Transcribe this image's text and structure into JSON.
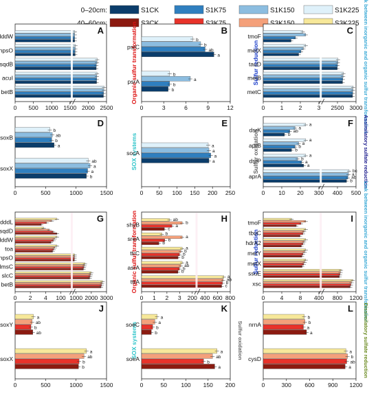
{
  "legend": {
    "rows": [
      {
        "label": "0–20cm:",
        "items": [
          {
            "name": "S1CK",
            "color": "#0b3d6b"
          },
          {
            "name": "S1K75",
            "color": "#2f7fbf"
          },
          {
            "name": "S1K150",
            "color": "#8cbde0"
          },
          {
            "name": "S1K225",
            "color": "#dff1fa"
          }
        ]
      },
      {
        "label": "40–60cm:",
        "items": [
          {
            "name": "S3CK",
            "color": "#8b1a10"
          },
          {
            "name": "S3K75",
            "color": "#e8322a"
          },
          {
            "name": "S3K150",
            "color": "#f4a07a"
          },
          {
            "name": "S3K225",
            "color": "#f7e89a"
          }
        ]
      }
    ]
  },
  "chart_data": [
    {
      "panel": "A",
      "type": "bar",
      "orientation": "horizontal",
      "group": "0–20cm",
      "categories": [
        "dddW",
        "hpsO",
        "sqdB",
        "acuI",
        "betB"
      ],
      "xlim": [
        0,
        2500
      ],
      "xticks": [
        "0",
        "500",
        "1000",
        "1500",
        "2000",
        "2500"
      ],
      "axis_break": true,
      "series": [
        {
          "name": "S1CK",
          "values": [
            90,
            130,
            1820,
            1850,
            2400
          ]
        },
        {
          "name": "S1K75",
          "values": [
            85,
            125,
            1830,
            1860,
            2410
          ]
        },
        {
          "name": "S1K150",
          "values": [
            95,
            135,
            1880,
            1870,
            2440
          ]
        },
        {
          "name": "S1K225",
          "values": [
            100,
            145,
            1900,
            1880,
            2450
          ]
        }
      ]
    },
    {
      "panel": "B",
      "type": "bar",
      "orientation": "horizontal",
      "group": "0–20cm",
      "side_title": "Organic sulfur transformation",
      "categories": [
        "psrC",
        "psrA"
      ],
      "xlim": [
        0,
        12
      ],
      "xticks": [
        "0",
        "3",
        "6",
        "9",
        "12"
      ],
      "series": [
        {
          "name": "S1CK",
          "values": [
            9.8,
            3.6
          ]
        },
        {
          "name": "S1K75",
          "values": [
            8.6,
            3.8
          ]
        },
        {
          "name": "S1K150",
          "values": [
            8.0,
            6.6
          ]
        },
        {
          "name": "S1K225",
          "values": [
            6.9,
            3.8
          ]
        }
      ],
      "letters": [
        [
          "a",
          "ab",
          "b",
          "b"
        ],
        [
          "b",
          "b",
          "a",
          "b"
        ]
      ]
    },
    {
      "panel": "C",
      "type": "bar",
      "orientation": "horizontal",
      "group": "0–20cm",
      "side_title": "Sulfur reduction",
      "right_title": "Link between inorganic and organic sulfur transformation",
      "categories": [
        "tmoF",
        "metX",
        "tauD",
        "metB",
        "metC"
      ],
      "xlim": [
        0,
        3000
      ],
      "xticks": [
        "0",
        "1",
        "2",
        "3",
        "2500",
        "3000"
      ],
      "axis_break": true,
      "series": [
        {
          "name": "S1CK",
          "values": [
            1.9,
            1.5,
            1400,
            1900,
            2850
          ]
        },
        {
          "name": "S1K75",
          "values": [
            2.2,
            1.6,
            1420,
            1920,
            2870
          ]
        },
        {
          "name": "S1K150",
          "values": [
            2.9,
            1.7,
            1450,
            1950,
            2890
          ]
        },
        {
          "name": "S1K225",
          "values": [
            2.7,
            1.8,
            1470,
            1980,
            2910
          ]
        }
      ]
    },
    {
      "panel": "D",
      "type": "bar",
      "orientation": "horizontal",
      "group": "0–20cm",
      "categories": [
        "soxB",
        "soxX"
      ],
      "xlim": [
        0,
        1500
      ],
      "xticks": [
        "0",
        "500",
        "1000",
        "1500"
      ],
      "series": [
        {
          "name": "S1CK",
          "values": [
            640,
            1170
          ]
        },
        {
          "name": "S1K75",
          "values": [
            600,
            1190
          ]
        },
        {
          "name": "S1K150",
          "values": [
            610,
            1230
          ]
        },
        {
          "name": "S1K225",
          "values": [
            570,
            1200
          ]
        }
      ],
      "letters": [
        [
          "a",
          "b",
          "ab",
          "b"
        ],
        [
          "b",
          "a",
          "a",
          "ab"
        ]
      ]
    },
    {
      "panel": "E",
      "type": "bar",
      "orientation": "horizontal",
      "group": "0–20cm",
      "side_title": "SOX systems",
      "categories": [
        "socA"
      ],
      "xlim": [
        0,
        250
      ],
      "xticks": [
        "0",
        "50",
        "100",
        "150",
        "200",
        "250"
      ],
      "series": [
        {
          "name": "S1CK",
          "values": [
            190
          ]
        },
        {
          "name": "S1K75",
          "values": [
            195
          ]
        },
        {
          "name": "S1K150",
          "values": [
            190
          ]
        },
        {
          "name": "S1K225",
          "values": [
            188
          ]
        }
      ],
      "letters": [
        [
          "a",
          "a",
          "a",
          "a"
        ]
      ]
    },
    {
      "panel": "F",
      "type": "bar",
      "orientation": "horizontal",
      "group": "0–20cm",
      "side_title": "Sulfur oxidation",
      "right_title": "Assimilatory sulfate reduction",
      "categories": [
        "dsrK",
        "aprB",
        "dsrP",
        "aprA"
      ],
      "xlim": [
        0,
        500
      ],
      "xticks": [
        "0",
        "10",
        "20",
        "300",
        "400",
        "500"
      ],
      "axis_break": true,
      "series": [
        {
          "name": "S1CK",
          "values": [
            4,
            8,
            20,
            380
          ]
        },
        {
          "name": "S1K75",
          "values": [
            5,
            9,
            19,
            400
          ]
        },
        {
          "name": "S1K150",
          "values": [
            6,
            10,
            17,
            410
          ]
        },
        {
          "name": "S1K225",
          "values": [
            8,
            12,
            21,
            420
          ]
        }
      ],
      "letters": [
        [
          "b",
          "ab",
          "a",
          "a"
        ],
        [
          "b",
          "b",
          "a",
          "a"
        ],
        [
          "a",
          "a",
          "b",
          "a"
        ],
        [
          "b",
          "ab",
          "a",
          "bc"
        ]
      ]
    },
    {
      "panel": "G",
      "type": "bar",
      "orientation": "horizontal",
      "group": "40–60cm",
      "categories": [
        "dddL",
        "sqdD",
        "dddW",
        "toa",
        "hpsO",
        "dmsC",
        "slcC",
        "betB"
      ],
      "xlim": [
        0,
        3000
      ],
      "xticks": [
        "0",
        "2",
        "4",
        "100",
        "1000",
        "2000",
        "3000"
      ],
      "axis_break": true,
      "series": [
        {
          "name": "S3CK",
          "values": [
            0.5,
            2.2,
            3.0,
            3.4,
            80,
            950,
            1550,
            2650
          ]
        },
        {
          "name": "S3K75",
          "values": [
            0.6,
            2.0,
            3.2,
            3.5,
            90,
            1000,
            1600,
            2700
          ]
        },
        {
          "name": "S3K150",
          "values": [
            0.7,
            1.8,
            3.3,
            3.6,
            95,
            1050,
            1650,
            2750
          ]
        },
        {
          "name": "S3K225",
          "values": [
            0.8,
            1.5,
            3.5,
            3.8,
            100,
            1100,
            1700,
            2800
          ]
        }
      ]
    },
    {
      "panel": "H",
      "type": "bar",
      "orientation": "horizontal",
      "group": "40–60cm",
      "side_title": "Organic sulfur transformation",
      "categories": [
        "shyB",
        "sreA",
        "ttrC",
        "asrA",
        "ttrA"
      ],
      "xlim": [
        0,
        800
      ],
      "xticks": [
        "0",
        "1",
        "2",
        "3",
        "200",
        "400",
        "600",
        "800"
      ],
      "axis_break": true,
      "series": [
        {
          "name": "S3CK",
          "values": [
            0.9,
            0.6,
            2.7,
            2.6,
            620
          ]
        },
        {
          "name": "S3K75",
          "values": [
            1.2,
            0.8,
            2.8,
            2.7,
            640
          ]
        },
        {
          "name": "S3K150",
          "values": [
            1.6,
            1.4,
            2.9,
            2.8,
            660
          ]
        },
        {
          "name": "S3K225",
          "values": [
            1.1,
            0.7,
            3.0,
            2.9,
            680
          ]
        }
      ],
      "letters": [
        [
          "c",
          "a",
          "b",
          "ab"
        ],
        [
          "b",
          "b",
          "a",
          "b"
        ],
        [
          "b",
          "b",
          "b",
          "a"
        ],
        [
          "b",
          "b",
          "ab",
          "a"
        ],
        [
          "c",
          "b",
          "ab",
          "a"
        ]
      ]
    },
    {
      "panel": "I",
      "type": "bar",
      "orientation": "horizontal",
      "group": "40–60cm",
      "side_title": "Sulfur reduction",
      "right_title": "Link between inorganic and organic sulfur transformation",
      "categories": [
        "tmoF",
        "tbuC",
        "hdrA2",
        "metY",
        "metX",
        "ssuE",
        "xsc"
      ],
      "xlim": [
        0,
        1200
      ],
      "xticks": [
        "0",
        "4",
        "8",
        "400",
        "800",
        "1200"
      ],
      "axis_break": true,
      "series": [
        {
          "name": "S3CK",
          "values": [
            3.5,
            6.5,
            7.0,
            7.2,
            7.5,
            640,
            1050
          ]
        },
        {
          "name": "S3K75",
          "values": [
            4.0,
            7.0,
            7.3,
            7.4,
            7.8,
            660,
            1080
          ]
        },
        {
          "name": "S3K150",
          "values": [
            4.5,
            7.2,
            7.5,
            7.7,
            8.0,
            680,
            1100
          ]
        },
        {
          "name": "S3K225",
          "values": [
            3.0,
            7.5,
            7.8,
            7.9,
            8.2,
            700,
            1150
          ]
        }
      ]
    },
    {
      "panel": "J",
      "type": "bar",
      "orientation": "horizontal",
      "group": "40–60cm",
      "categories": [
        "soxY",
        "soxX"
      ],
      "xlim": [
        0,
        1500
      ],
      "xticks": [
        "0",
        "500",
        "1000",
        "1500"
      ],
      "series": [
        {
          "name": "S3CK",
          "values": [
            290,
            1040
          ]
        },
        {
          "name": "S3K75",
          "values": [
            260,
            1050
          ]
        },
        {
          "name": "S3K150",
          "values": [
            280,
            1130
          ]
        },
        {
          "name": "S3K225",
          "values": [
            300,
            1170
          ]
        }
      ],
      "letters": [
        [
          "ab",
          "b",
          "ab",
          "a"
        ],
        [
          "b",
          "b",
          "ab",
          "a"
        ]
      ]
    },
    {
      "panel": "K",
      "type": "bar",
      "orientation": "horizontal",
      "group": "40–60cm",
      "side_title": "SOX systems",
      "right_title": "Sulfur oxidation",
      "categories": [
        "soeC",
        "soeA"
      ],
      "xlim": [
        0,
        200
      ],
      "xticks": [
        "0",
        "50",
        "100",
        "150",
        "200"
      ],
      "series": [
        {
          "name": "S3CK",
          "values": [
            22,
            165
          ]
        },
        {
          "name": "S3K75",
          "values": [
            25,
            140
          ]
        },
        {
          "name": "S3K150",
          "values": [
            30,
            160
          ]
        },
        {
          "name": "S3K225",
          "values": [
            35,
            170
          ]
        }
      ],
      "letters": [
        [
          "b",
          "b",
          "a",
          "a"
        ],
        [
          "a",
          "b",
          "ab",
          "a"
        ]
      ]
    },
    {
      "panel": "L",
      "type": "bar",
      "orientation": "horizontal",
      "group": "40–60cm",
      "right_title": "Dissimilatory sulfate reduction",
      "categories": [
        "nrnA",
        "cysD"
      ],
      "xlim": [
        0,
        1200
      ],
      "xticks": [
        "0",
        "300",
        "600",
        "900",
        "1200"
      ],
      "series": [
        {
          "name": "S3CK",
          "values": [
            560,
            1060
          ]
        },
        {
          "name": "S3K75",
          "values": [
            520,
            1080
          ]
        },
        {
          "name": "S3K150",
          "values": [
            540,
            1090
          ]
        },
        {
          "name": "S3K225",
          "values": [
            530,
            1070
          ]
        }
      ],
      "letters": [
        [
          "a",
          "a",
          "b",
          "b"
        ],
        [
          "a",
          "ab",
          "b",
          "a"
        ]
      ]
    }
  ]
}
